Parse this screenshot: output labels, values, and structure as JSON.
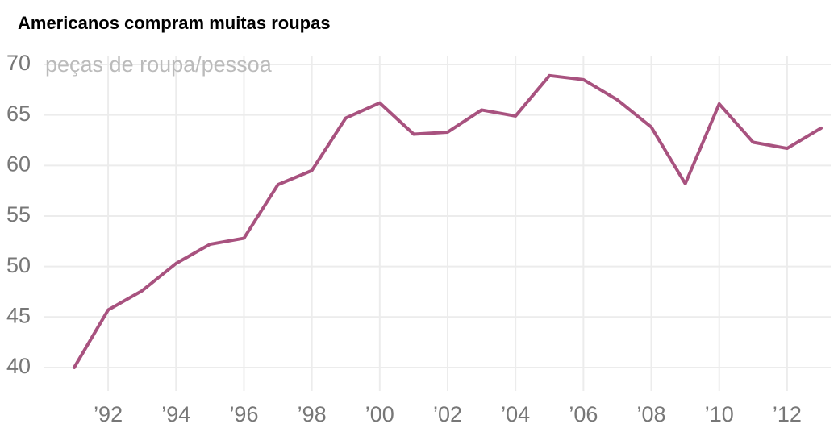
{
  "chart_data": {
    "type": "line",
    "title": "Americanos compram muitas roupas",
    "y_label": "peças de roupa/pessoa",
    "categories": [
      null,
      "’92",
      null,
      "’94",
      null,
      "’96",
      null,
      "’98",
      null,
      "’00",
      null,
      "’02",
      null,
      "’04",
      null,
      "’06",
      null,
      "’08",
      null,
      "’10",
      null,
      "’12",
      null
    ],
    "series": [
      {
        "name": "peças de roupa/pessoa",
        "color": "#a8527f",
        "values": [
          40.0,
          45.7,
          47.6,
          50.3,
          52.2,
          52.8,
          58.1,
          59.5,
          64.7,
          66.2,
          63.1,
          63.3,
          65.5,
          64.9,
          68.9,
          68.5,
          66.5,
          63.8,
          58.2,
          66.1,
          62.3,
          61.7,
          63.7
        ]
      }
    ],
    "ylim": [
      38,
      71
    ],
    "yticks": [
      40,
      45,
      50,
      55,
      60,
      65,
      70
    ],
    "grid": true
  }
}
